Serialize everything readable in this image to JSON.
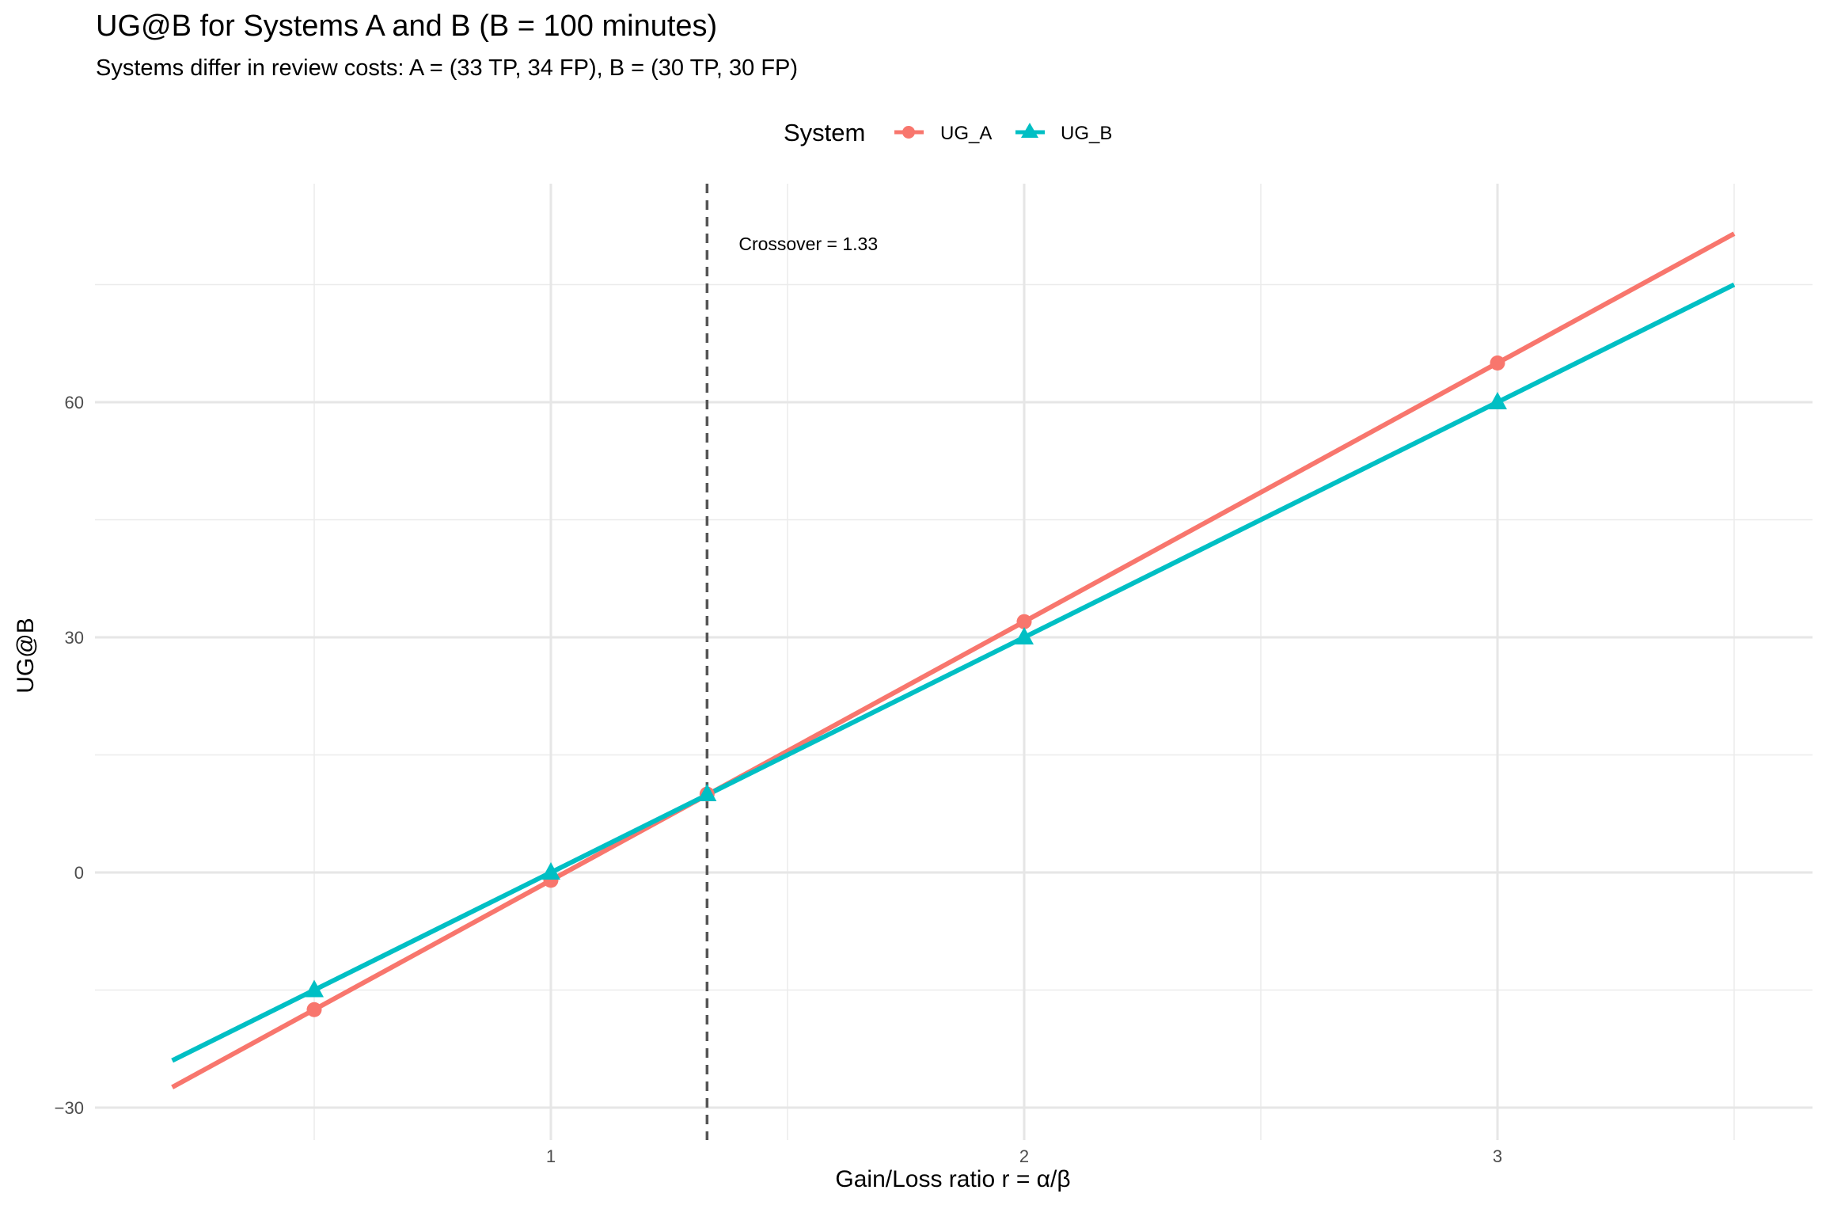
{
  "chart_data": {
    "type": "line",
    "title": "UG@B for Systems A and B (B = 100 minutes)",
    "subtitle": "Systems differ in review costs: A = (33 TP, 34 FP), B = (30 TP, 30 FP)",
    "xlabel": "Gain/Loss ratio  r = α/β",
    "ylabel": "UG@B",
    "xlim": [
      0.2,
      3.5
    ],
    "ylim": [
      -30,
      80
    ],
    "x_ticks": [
      1,
      2,
      3
    ],
    "x_tick_labels": [
      "1",
      "2",
      "3"
    ],
    "y_ticks": [
      -30,
      0,
      30,
      60
    ],
    "y_tick_labels": [
      "−30",
      "0",
      "30",
      "60"
    ],
    "grid": true,
    "legend": {
      "title": "System",
      "position": "top"
    },
    "series": [
      {
        "name": "UG_A",
        "color": "#F8766D",
        "marker": "circle",
        "line_x": [
          0.2,
          3.5
        ],
        "line_y": [
          -27.4,
          81.5
        ],
        "points_x": [
          0.5,
          1,
          1.33,
          2,
          3
        ],
        "points_y": [
          -17.5,
          -1,
          10,
          32,
          65
        ]
      },
      {
        "name": "UG_B",
        "color": "#00BFC4",
        "marker": "triangle",
        "line_x": [
          0.2,
          3.5
        ],
        "line_y": [
          -24,
          75
        ],
        "points_x": [
          0.5,
          1,
          1.33,
          2,
          3
        ],
        "points_y": [
          -15,
          0,
          10,
          30,
          60
        ]
      }
    ],
    "crossover": {
      "x": 1.33,
      "label": "Crossover = 1.33"
    }
  }
}
